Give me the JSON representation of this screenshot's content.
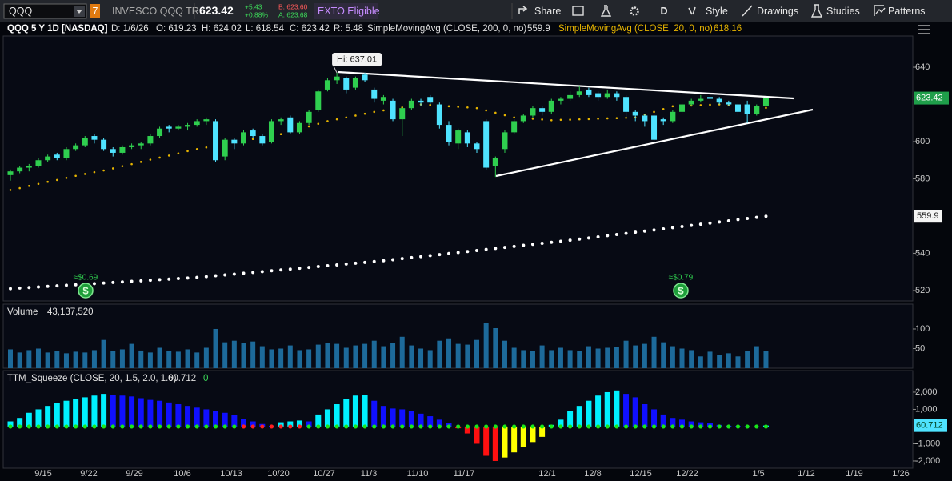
{
  "toolbar": {
    "symbol": "QQQ",
    "badge": "7",
    "description": "INVESCO QQQ TR",
    "last": "623.42",
    "net_change": "+5.43",
    "pct_change": "+0.88%",
    "bid": "B: 623.60",
    "ask": "A: 623.68",
    "exto": "EXTO Eligible",
    "buttons": [
      "Share",
      "D",
      "Style",
      "Drawings",
      "Studies",
      "Patterns"
    ]
  },
  "header": {
    "title": "QQQ 5 Y 1D [NASDAQ]",
    "fields": [
      "D: 1/6/26",
      "O: 619.23",
      "H: 624.02",
      "L: 618.54",
      "C: 623.42",
      "R: 5.48"
    ],
    "sma200_label": "SimpleMovingAvg (CLOSE, 200, 0, no)",
    "sma200_value": 559.9,
    "sma20_label": "SimpleMovingAvg (CLOSE, 20, 0, no)",
    "sma20_value": 618.16
  },
  "price_panel": {
    "type": "candlestick",
    "up_color": "#2fcf4f",
    "down_color": "#4fe3ff",
    "ylim": [
      514.8,
      656.8
    ],
    "yticks": [
      520,
      540,
      580,
      600,
      640
    ],
    "hi_label": "Hi: 637.01",
    "dividends": [
      "≈$0.69",
      "≈$0.79"
    ],
    "candles": [
      [
        582,
        585,
        579,
        584
      ],
      [
        584,
        587,
        583,
        586
      ],
      [
        586,
        588,
        584,
        587
      ],
      [
        587,
        591,
        586,
        590
      ],
      [
        590,
        593,
        589,
        592
      ],
      [
        593,
        594,
        590,
        591
      ],
      [
        591,
        597,
        590,
        596
      ],
      [
        596,
        599,
        595,
        598
      ],
      [
        598,
        603,
        597,
        602
      ],
      [
        603,
        604,
        599,
        601
      ],
      [
        601,
        602,
        595,
        596
      ],
      [
        596,
        597,
        592,
        594
      ],
      [
        594,
        598,
        593,
        597
      ],
      [
        597,
        599,
        596,
        598
      ],
      [
        598,
        600,
        596,
        599
      ],
      [
        599,
        604,
        598,
        603
      ],
      [
        603,
        608,
        602,
        607
      ],
      [
        608,
        609,
        605,
        607
      ],
      [
        607,
        609,
        606,
        608
      ],
      [
        608,
        610,
        606,
        609
      ],
      [
        609,
        612,
        608,
        611
      ],
      [
        611,
        613,
        609,
        612
      ],
      [
        611,
        612,
        589,
        590
      ],
      [
        592,
        602,
        590,
        601
      ],
      [
        601,
        602,
        596,
        599
      ],
      [
        599,
        606,
        598,
        605
      ],
      [
        606,
        607,
        602,
        603
      ],
      [
        603,
        604,
        598,
        599
      ],
      [
        600,
        612,
        599,
        611
      ],
      [
        611,
        613,
        609,
        612
      ],
      [
        613,
        614,
        604,
        605
      ],
      [
        605,
        611,
        604,
        610
      ],
      [
        610,
        617,
        609,
        616
      ],
      [
        617,
        628,
        616,
        627
      ],
      [
        628,
        634,
        627,
        633
      ],
      [
        633,
        637.01,
        631,
        635
      ],
      [
        634,
        635,
        626,
        628
      ],
      [
        629,
        635,
        628,
        634
      ],
      [
        636,
        637,
        632,
        633
      ],
      [
        628,
        629,
        621,
        623
      ],
      [
        622,
        625,
        620,
        624
      ],
      [
        622,
        623,
        611,
        612
      ],
      [
        612,
        619,
        603,
        618
      ],
      [
        618,
        623,
        617,
        622
      ],
      [
        622,
        623,
        619,
        621
      ],
      [
        624,
        625,
        620,
        621
      ],
      [
        620,
        621,
        607,
        609
      ],
      [
        609,
        611,
        598,
        600
      ],
      [
        599,
        607,
        596,
        606
      ],
      [
        605,
        606,
        597,
        599
      ],
      [
        599,
        600,
        594,
        596
      ],
      [
        611,
        612,
        585,
        586
      ],
      [
        587,
        592,
        581,
        591
      ],
      [
        596,
        606,
        594,
        605
      ],
      [
        605,
        612,
        604,
        611
      ],
      [
        611,
        615,
        610,
        614
      ],
      [
        614,
        619,
        613,
        618
      ],
      [
        618,
        619,
        614,
        616
      ],
      [
        616,
        623,
        615,
        622
      ],
      [
        622,
        624,
        620,
        623
      ],
      [
        623,
        627,
        622,
        625
      ],
      [
        625,
        630,
        624,
        627
      ],
      [
        628,
        629,
        624,
        625
      ],
      [
        626,
        627,
        622,
        624
      ],
      [
        624,
        628,
        623,
        626
      ],
      [
        626,
        627,
        622,
        624
      ],
      [
        624,
        625,
        613,
        616
      ],
      [
        616,
        617,
        611,
        614
      ],
      [
        614,
        615,
        608,
        611
      ],
      [
        614,
        615,
        600,
        601
      ],
      [
        612,
        613,
        609,
        611
      ],
      [
        611,
        617,
        610,
        616
      ],
      [
        616,
        621,
        615,
        620
      ],
      [
        620,
        623,
        619,
        622
      ],
      [
        622,
        625,
        621,
        623
      ],
      [
        624,
        625,
        622,
        623
      ],
      [
        623,
        624,
        620,
        621
      ],
      [
        621,
        622,
        619,
        620
      ],
      [
        620,
        621,
        614,
        616
      ],
      [
        620,
        622,
        610,
        615
      ],
      [
        615,
        620,
        614,
        619
      ],
      [
        619.23,
        624.02,
        618.54,
        623.42
      ]
    ],
    "sma20": {
      "color": "#e6b400",
      "values": [
        574,
        575,
        576.2,
        577.3,
        578.4,
        579.4,
        580.5,
        581.6,
        582.6,
        583.6,
        584.5,
        585.6,
        586.8,
        587.9,
        589.1,
        590.3,
        591.4,
        592.5,
        593.7,
        594.9,
        596,
        596.9,
        597.8,
        598.7,
        599.6,
        600.5,
        601.4,
        602.3,
        603.2,
        604,
        605.4,
        606.8,
        608.2,
        609.6,
        611,
        612,
        613,
        614,
        615,
        616,
        616.8,
        617.6,
        618.4,
        619.2,
        620,
        619.7,
        619.4,
        619,
        618.7,
        618.4,
        618,
        616.8,
        615.5,
        614.2,
        613,
        612.6,
        612.3,
        611.9,
        611.5,
        611.7,
        611.8,
        612,
        612.1,
        612.3,
        612.5,
        612.6,
        612.8,
        613,
        614.5,
        616,
        617.5,
        619,
        619.2,
        619.4,
        619.6,
        619.8,
        620,
        619.5,
        619,
        618.8,
        618.5,
        618.16
      ]
    },
    "sma200": {
      "color": "#ffffff",
      "values": [
        521,
        521.3,
        521.6,
        521.9,
        522.2,
        522.5,
        522.8,
        523.1,
        523.4,
        523.7,
        524,
        524.3,
        524.6,
        524.9,
        525.2,
        525.5,
        525.8,
        526.1,
        526.4,
        526.7,
        527,
        527.45,
        527.9,
        528.35,
        528.8,
        529.25,
        529.7,
        530.15,
        530.6,
        531.05,
        531.5,
        531.95,
        532.4,
        532.85,
        533.3,
        533.75,
        534.2,
        534.65,
        535.1,
        535.55,
        536,
        536.55,
        537.1,
        537.65,
        538.2,
        538.75,
        539.3,
        539.85,
        540.4,
        540.95,
        541.5,
        542.05,
        542.6,
        543.15,
        543.7,
        544.25,
        544.8,
        545.35,
        545.9,
        546.45,
        547,
        547.6,
        548.2,
        548.8,
        549.5,
        550.1,
        550.7,
        551.3,
        551.9,
        552.5,
        553.1,
        553.8,
        554.4,
        555,
        555.6,
        556.2,
        556.8,
        557.4,
        558.1,
        558.7,
        559.3,
        559.9
      ]
    }
  },
  "volume_panel": {
    "type": "bar",
    "title": "Volume",
    "last_label": "43,137,520",
    "color": "#1d6a9a",
    "ylim": [
      0,
      122.4
    ],
    "yticks": [
      50,
      100
    ],
    "values": [
      48,
      40,
      46,
      50,
      40,
      44,
      38,
      42,
      40,
      46,
      72,
      44,
      48,
      62,
      45,
      40,
      52,
      44,
      42,
      48,
      40,
      52,
      100,
      66,
      70,
      64,
      68,
      56,
      48,
      50,
      58,
      46,
      48,
      60,
      64,
      62,
      52,
      58,
      62,
      70,
      56,
      64,
      80,
      58,
      50,
      46,
      70,
      76,
      62,
      60,
      72,
      115,
      102,
      70,
      52,
      46,
      44,
      58,
      46,
      52,
      46,
      44,
      56,
      50,
      52,
      54,
      70,
      58,
      62,
      80,
      66,
      56,
      50,
      46,
      30,
      42,
      34,
      38,
      30,
      44,
      56,
      43.13752
    ]
  },
  "squeeze_panel": {
    "type": "histogram",
    "title": "TTM_Squeeze (CLOSE, 20, 1.5, 2.0, 1.0)",
    "last_value": 60.712,
    "signal_value": 0,
    "colors": {
      "rising_positive": "#00f0ff",
      "falling_positive": "#1010ff",
      "falling_negative": "#ff1010",
      "rising_negative": "#ffff00"
    },
    "ylim": [
      -2420,
      2370
    ],
    "yticks": [
      {
        "value": -2000,
        "label": "-2,000"
      },
      {
        "value": -1000,
        "label": "-1,000"
      },
      {
        "value": 1000,
        "label": "1,000"
      },
      {
        "value": 2000,
        "label": "2,000"
      }
    ],
    "values": [
      300,
      500,
      800,
      1000,
      1200,
      1350,
      1500,
      1600,
      1700,
      1800,
      1900,
      1850,
      1800,
      1750,
      1650,
      1550,
      1500,
      1400,
      1300,
      1200,
      1100,
      1000,
      900,
      800,
      650,
      450,
      300,
      150,
      50,
      250,
      300,
      350,
      300,
      700,
      1000,
      1300,
      1600,
      1800,
      1850,
      1500,
      1200,
      1050,
      1000,
      900,
      750,
      600,
      400,
      200,
      -100,
      -400,
      -1000,
      -1700,
      -2000,
      -1800,
      -1500,
      -1200,
      -900,
      -600,
      100,
      400,
      900,
      1200,
      1500,
      1800,
      2000,
      2100,
      1900,
      1700,
      1300,
      1000,
      700,
      500,
      400,
      300,
      250,
      200,
      100,
      50,
      30,
      20,
      10,
      60.712
    ],
    "dot_colors": [
      "#19e619",
      "#19e619",
      "#19e619",
      "#19e619",
      "#19e619",
      "#19e619",
      "#19e619",
      "#19e619",
      "#19e619",
      "#19e619",
      "#19e619",
      "#19e619",
      "#19e619",
      "#19e619",
      "#19e619",
      "#19e619",
      "#19e619",
      "#19e619",
      "#19e619",
      "#19e619",
      "#19e619",
      "#19e619",
      "#19e619",
      "#19e619",
      "#19e619",
      "#ff2020",
      "#ff2020",
      "#ff2020",
      "#ff2020",
      "#ff2020",
      "#ff2020",
      "#ff2020",
      "#19e619",
      "#19e619",
      "#19e619",
      "#19e619",
      "#19e619",
      "#19e619",
      "#19e619",
      "#19e619",
      "#19e619",
      "#19e619",
      "#19e619",
      "#19e619",
      "#19e619",
      "#19e619",
      "#19e619",
      "#19e619",
      "#19e619",
      "#19e619",
      "#19e619",
      "#19e619",
      "#19e619",
      "#19e619",
      "#19e619",
      "#19e619",
      "#19e619",
      "#19e619",
      "#19e619",
      "#19e619",
      "#19e619",
      "#19e619",
      "#19e619",
      "#19e619",
      "#19e619",
      "#19e619",
      "#19e619",
      "#19e619",
      "#19e619",
      "#19e619",
      "#19e619",
      "#19e619",
      "#19e619",
      "#19e619",
      "#19e619",
      "#19e619",
      "#19e619",
      "#19e619",
      "#19e619",
      "#19e619",
      "#19e619",
      "#19e619"
    ]
  },
  "x_axis": {
    "labels": [
      "9/15",
      "9/22",
      "9/29",
      "10/6",
      "10/13",
      "10/20",
      "10/27",
      "11/3",
      "11/10",
      "11/17",
      "12/1",
      "12/8",
      "12/15",
      "12/22",
      "1/5",
      "1/12",
      "1/19",
      "1/26"
    ]
  }
}
